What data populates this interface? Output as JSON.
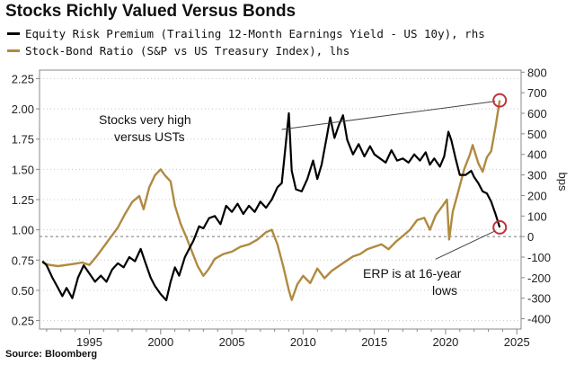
{
  "chart_data": {
    "type": "line",
    "title": "Stocks Richly Valued Versus Bonds",
    "source": "Source: Bloomberg",
    "x_ticks": [
      "1995",
      "2000",
      "2005",
      "2010",
      "2015",
      "2020",
      "2025"
    ],
    "xlim": [
      1991.5,
      2025.3
    ],
    "y_left": {
      "ylim": [
        0.18,
        2.32
      ],
      "ticks": [
        "0.25",
        "0.50",
        "0.75",
        "1.00",
        "1.25",
        "1.50",
        "1.75",
        "2.00",
        "2.25"
      ]
    },
    "y_right": {
      "label": "bps",
      "ylim": [
        -450,
        810
      ],
      "ticks": [
        "-400",
        "-300",
        "-200",
        "-100",
        "0",
        "100",
        "200",
        "300",
        "400",
        "500",
        "600",
        "700",
        "800"
      ]
    },
    "grid": "dotted-horizontal",
    "legend_placement": "top-left",
    "series": [
      {
        "name": "Equity Risk Premium (Trailing 12-Month Earnings Yield - US 10y), rhs",
        "axis": "right",
        "color": "#000000",
        "points": [
          [
            1991.7,
            -120
          ],
          [
            1992.0,
            -140
          ],
          [
            1992.4,
            -200
          ],
          [
            1992.8,
            -250
          ],
          [
            1993.1,
            -290
          ],
          [
            1993.4,
            -250
          ],
          [
            1993.8,
            -300
          ],
          [
            1994.2,
            -200
          ],
          [
            1994.6,
            -140
          ],
          [
            1995.0,
            -180
          ],
          [
            1995.4,
            -220
          ],
          [
            1995.8,
            -190
          ],
          [
            1996.2,
            -220
          ],
          [
            1996.6,
            -160
          ],
          [
            1997.0,
            -130
          ],
          [
            1997.4,
            -150
          ],
          [
            1997.8,
            -100
          ],
          [
            1998.2,
            -120
          ],
          [
            1998.6,
            -60
          ],
          [
            1998.9,
            -120
          ],
          [
            1999.3,
            -200
          ],
          [
            1999.6,
            -240
          ],
          [
            2000.0,
            -280
          ],
          [
            2000.4,
            -310
          ],
          [
            2000.7,
            -220
          ],
          [
            2001.0,
            -150
          ],
          [
            2001.3,
            -190
          ],
          [
            2001.7,
            -100
          ],
          [
            2002.0,
            -60
          ],
          [
            2002.3,
            -20
          ],
          [
            2002.7,
            50
          ],
          [
            2003.0,
            40
          ],
          [
            2003.4,
            90
          ],
          [
            2003.8,
            100
          ],
          [
            2004.2,
            60
          ],
          [
            2004.6,
            150
          ],
          [
            2005.0,
            120
          ],
          [
            2005.4,
            160
          ],
          [
            2005.8,
            110
          ],
          [
            2006.2,
            150
          ],
          [
            2006.6,
            120
          ],
          [
            2007.0,
            170
          ],
          [
            2007.4,
            140
          ],
          [
            2007.8,
            180
          ],
          [
            2008.2,
            240
          ],
          [
            2008.5,
            260
          ],
          [
            2008.8,
            460
          ],
          [
            2009.0,
            600
          ],
          [
            2009.2,
            320
          ],
          [
            2009.5,
            230
          ],
          [
            2009.9,
            220
          ],
          [
            2010.3,
            280
          ],
          [
            2010.7,
            370
          ],
          [
            2011.0,
            280
          ],
          [
            2011.3,
            350
          ],
          [
            2011.7,
            500
          ],
          [
            2011.9,
            580
          ],
          [
            2012.2,
            480
          ],
          [
            2012.5,
            540
          ],
          [
            2012.8,
            590
          ],
          [
            2013.1,
            470
          ],
          [
            2013.5,
            400
          ],
          [
            2013.9,
            450
          ],
          [
            2014.3,
            390
          ],
          [
            2014.7,
            440
          ],
          [
            2015.0,
            400
          ],
          [
            2015.4,
            380
          ],
          [
            2015.8,
            360
          ],
          [
            2016.2,
            420
          ],
          [
            2016.6,
            370
          ],
          [
            2017.0,
            380
          ],
          [
            2017.4,
            360
          ],
          [
            2017.8,
            400
          ],
          [
            2018.2,
            370
          ],
          [
            2018.6,
            410
          ],
          [
            2018.9,
            350
          ],
          [
            2019.2,
            380
          ],
          [
            2019.6,
            340
          ],
          [
            2019.9,
            390
          ],
          [
            2020.2,
            510
          ],
          [
            2020.4,
            470
          ],
          [
            2020.7,
            380
          ],
          [
            2021.0,
            300
          ],
          [
            2021.4,
            300
          ],
          [
            2021.8,
            320
          ],
          [
            2022.0,
            290
          ],
          [
            2022.3,
            260
          ],
          [
            2022.6,
            220
          ],
          [
            2022.9,
            210
          ],
          [
            2023.2,
            170
          ],
          [
            2023.5,
            110
          ],
          [
            2023.8,
            45
          ]
        ]
      },
      {
        "name": "Stock-Bond Ratio (S&P vs US Treasury Index), lhs",
        "axis": "left",
        "color": "#b08a40",
        "points": [
          [
            1991.7,
            0.73
          ],
          [
            1992.2,
            0.71
          ],
          [
            1992.8,
            0.7
          ],
          [
            1993.4,
            0.71
          ],
          [
            1994.0,
            0.72
          ],
          [
            1994.5,
            0.73
          ],
          [
            1995.0,
            0.71
          ],
          [
            1995.5,
            0.78
          ],
          [
            1996.0,
            0.86
          ],
          [
            1996.5,
            0.94
          ],
          [
            1997.0,
            1.02
          ],
          [
            1997.5,
            1.13
          ],
          [
            1998.0,
            1.23
          ],
          [
            1998.5,
            1.28
          ],
          [
            1998.8,
            1.17
          ],
          [
            1999.2,
            1.35
          ],
          [
            1999.6,
            1.45
          ],
          [
            2000.0,
            1.5
          ],
          [
            2000.3,
            1.45
          ],
          [
            2000.7,
            1.4
          ],
          [
            2001.0,
            1.2
          ],
          [
            2001.4,
            1.05
          ],
          [
            2001.8,
            0.94
          ],
          [
            2002.2,
            0.82
          ],
          [
            2002.6,
            0.7
          ],
          [
            2003.0,
            0.62
          ],
          [
            2003.4,
            0.68
          ],
          [
            2003.8,
            0.76
          ],
          [
            2004.4,
            0.8
          ],
          [
            2005.0,
            0.82
          ],
          [
            2005.6,
            0.86
          ],
          [
            2006.2,
            0.88
          ],
          [
            2006.8,
            0.92
          ],
          [
            2007.4,
            0.98
          ],
          [
            2007.8,
            1.0
          ],
          [
            2008.2,
            0.88
          ],
          [
            2008.6,
            0.7
          ],
          [
            2009.0,
            0.5
          ],
          [
            2009.2,
            0.42
          ],
          [
            2009.6,
            0.55
          ],
          [
            2010.0,
            0.62
          ],
          [
            2010.5,
            0.56
          ],
          [
            2011.0,
            0.68
          ],
          [
            2011.5,
            0.6
          ],
          [
            2012.0,
            0.66
          ],
          [
            2012.5,
            0.7
          ],
          [
            2013.0,
            0.74
          ],
          [
            2013.5,
            0.78
          ],
          [
            2014.0,
            0.8
          ],
          [
            2014.5,
            0.84
          ],
          [
            2015.0,
            0.86
          ],
          [
            2015.5,
            0.88
          ],
          [
            2016.0,
            0.84
          ],
          [
            2016.5,
            0.9
          ],
          [
            2017.0,
            0.95
          ],
          [
            2017.5,
            1.0
          ],
          [
            2018.0,
            1.08
          ],
          [
            2018.5,
            1.1
          ],
          [
            2018.9,
            1.0
          ],
          [
            2019.3,
            1.12
          ],
          [
            2019.8,
            1.2
          ],
          [
            2020.1,
            1.25
          ],
          [
            2020.25,
            0.92
          ],
          [
            2020.5,
            1.15
          ],
          [
            2020.9,
            1.32
          ],
          [
            2021.3,
            1.5
          ],
          [
            2021.7,
            1.62
          ],
          [
            2021.9,
            1.7
          ],
          [
            2022.3,
            1.55
          ],
          [
            2022.6,
            1.48
          ],
          [
            2022.9,
            1.6
          ],
          [
            2023.2,
            1.65
          ],
          [
            2023.5,
            1.85
          ],
          [
            2023.8,
            2.07
          ]
        ]
      }
    ],
    "annotations": [
      {
        "text_lines": [
          "Stocks very high",
          "versus USTs"
        ],
        "target": {
          "axis": "left",
          "x": 2023.8,
          "y": 2.07
        },
        "from": {
          "axis": "left",
          "x": 2008.5,
          "y": 1.83
        }
      },
      {
        "text_lines": [
          "ERP is at 16-year",
          "lows"
        ],
        "target": {
          "axis": "right",
          "x": 2023.8,
          "y": 45
        },
        "from": {
          "axis": "right",
          "x": 2019.3,
          "y": -110
        }
      }
    ]
  }
}
